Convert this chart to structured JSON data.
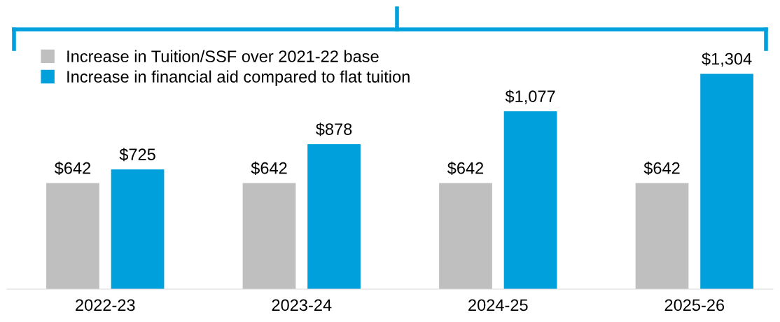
{
  "chart_data": {
    "type": "bar",
    "categories": [
      "2022-23",
      "2023-24",
      "2024-25",
      "2025-26"
    ],
    "series": [
      {
        "name": "Increase in Tuition/SSF over 2021-22 base",
        "color": "#bfbfbf",
        "values": [
          642,
          642,
          642,
          642
        ],
        "value_labels": [
          "$642",
          "$642",
          "$642",
          "$642"
        ]
      },
      {
        "name": "Increase in financial aid compared to flat tuition",
        "color": "#00a0dc",
        "values": [
          725,
          878,
          1077,
          1304
        ],
        "value_labels": [
          "$725",
          "$878",
          "$1,077",
          "$1,304"
        ]
      }
    ],
    "tick_labels": "x",
    "grid": false,
    "legend": "top left"
  }
}
